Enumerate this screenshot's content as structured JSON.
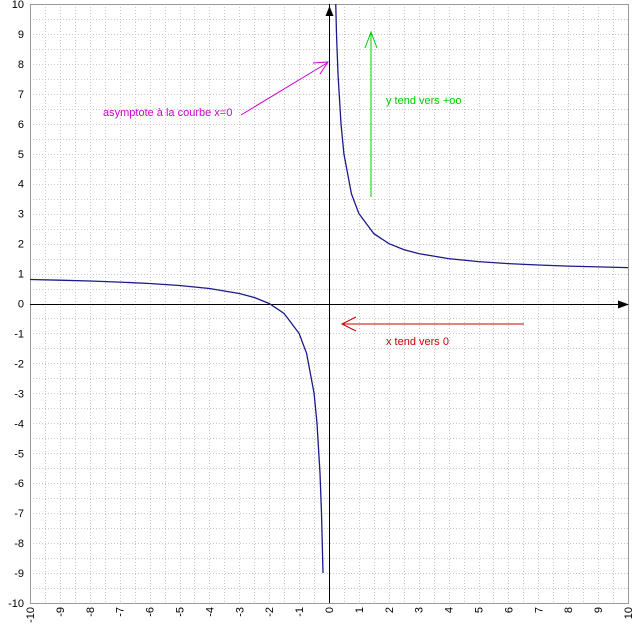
{
  "chart_data": {
    "type": "line",
    "xlim": [
      -10,
      10
    ],
    "ylim": [
      -10,
      10
    ],
    "grid": true,
    "x_ticks": [
      -10,
      -9,
      -8,
      -7,
      -6,
      -5,
      -4,
      -3,
      -2,
      -1,
      0,
      1,
      2,
      3,
      4,
      5,
      6,
      7,
      8,
      9,
      10
    ],
    "y_ticks": [
      -10,
      -9,
      -8,
      -7,
      -6,
      -5,
      -4,
      -3,
      -2,
      -1,
      0,
      1,
      2,
      3,
      4,
      5,
      6,
      7,
      8,
      9,
      10
    ],
    "series": [
      {
        "color": "#1a1a8c",
        "branches": [
          {
            "x": [
              -10,
              -9,
              -8,
              -7,
              -6,
              -5,
              -4,
              -3,
              -2.5,
              -2,
              -1.5,
              -1,
              -0.75,
              -0.5,
              -0.4,
              -0.3,
              -0.25,
              -0.2
            ],
            "y": [
              0.8,
              0.778,
              0.75,
              0.714,
              0.667,
              0.6,
              0.5,
              0.333,
              0.2,
              0,
              -0.333,
              -1,
              -1.667,
              -3,
              -4,
              -5.667,
              -7,
              -9
            ]
          },
          {
            "x": [
              0.2,
              0.25,
              0.3,
              0.4,
              0.5,
              0.75,
              1,
              1.5,
              2,
              2.5,
              3,
              4,
              5,
              6,
              7,
              8,
              9,
              10
            ],
            "y": [
              11,
              9,
              7.667,
              6,
              5,
              3.667,
              3,
              2.333,
              2,
              1.8,
              1.667,
              1.5,
              1.4,
              1.333,
              1.286,
              1.25,
              1.222,
              1.2
            ]
          }
        ]
      }
    ],
    "annotations": {
      "asymptote": {
        "text": "asymptote à la courbe x=0",
        "color": "#cc00cc"
      },
      "y_limit": {
        "text": "y tend vers +oo",
        "color": "#00cc00"
      },
      "x_limit": {
        "text": "x tend vers 0",
        "color": "#cc0000"
      }
    }
  }
}
